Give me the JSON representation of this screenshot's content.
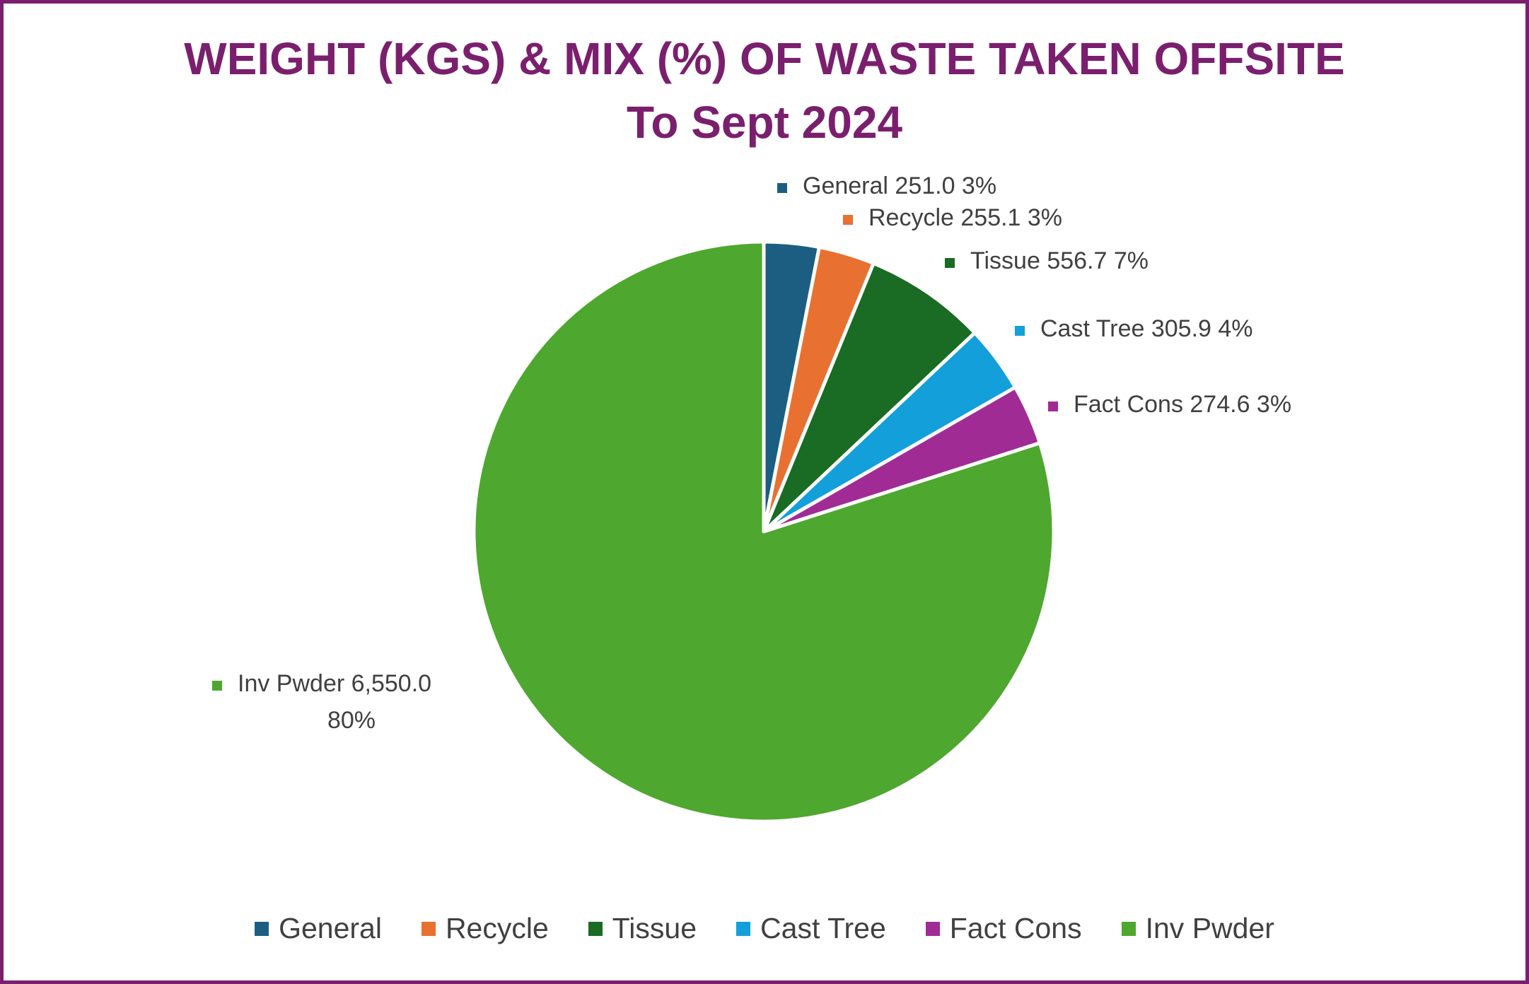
{
  "title": "WEIGHT (KGS) & MIX (%) OF WASTE TAKEN OFFSITE",
  "subtitle": "To Sept 2024",
  "chart_data": {
    "type": "pie",
    "title": "WEIGHT (KGS) & MIX (%) OF WASTE TAKEN OFFSITE To Sept 2024",
    "legend_position": "bottom",
    "slices": [
      {
        "label": "General",
        "value": 251.0,
        "value_text": "251.0",
        "percent_text": "3%",
        "color": "#1b5e82"
      },
      {
        "label": "Recycle",
        "value": 255.1,
        "value_text": "255.1",
        "percent_text": "3%",
        "color": "#e87030"
      },
      {
        "label": "Tissue",
        "value": 556.7,
        "value_text": "556.7",
        "percent_text": "7%",
        "color": "#1a6b24"
      },
      {
        "label": "Cast Tree",
        "value": 305.9,
        "value_text": "305.9",
        "percent_text": "4%",
        "color": "#129fda"
      },
      {
        "label": "Fact Cons",
        "value": 274.6,
        "value_text": "274.6",
        "percent_text": "3%",
        "color": "#a12b95"
      },
      {
        "label": "Inv Pwder",
        "value": 6550.0,
        "value_text": "6,550.0",
        "percent_text": "80%",
        "color": "#4ea72e"
      }
    ]
  },
  "colors": {
    "title": "#7a1f6e",
    "border": "#7a1f6e",
    "label_text": "#404040"
  }
}
